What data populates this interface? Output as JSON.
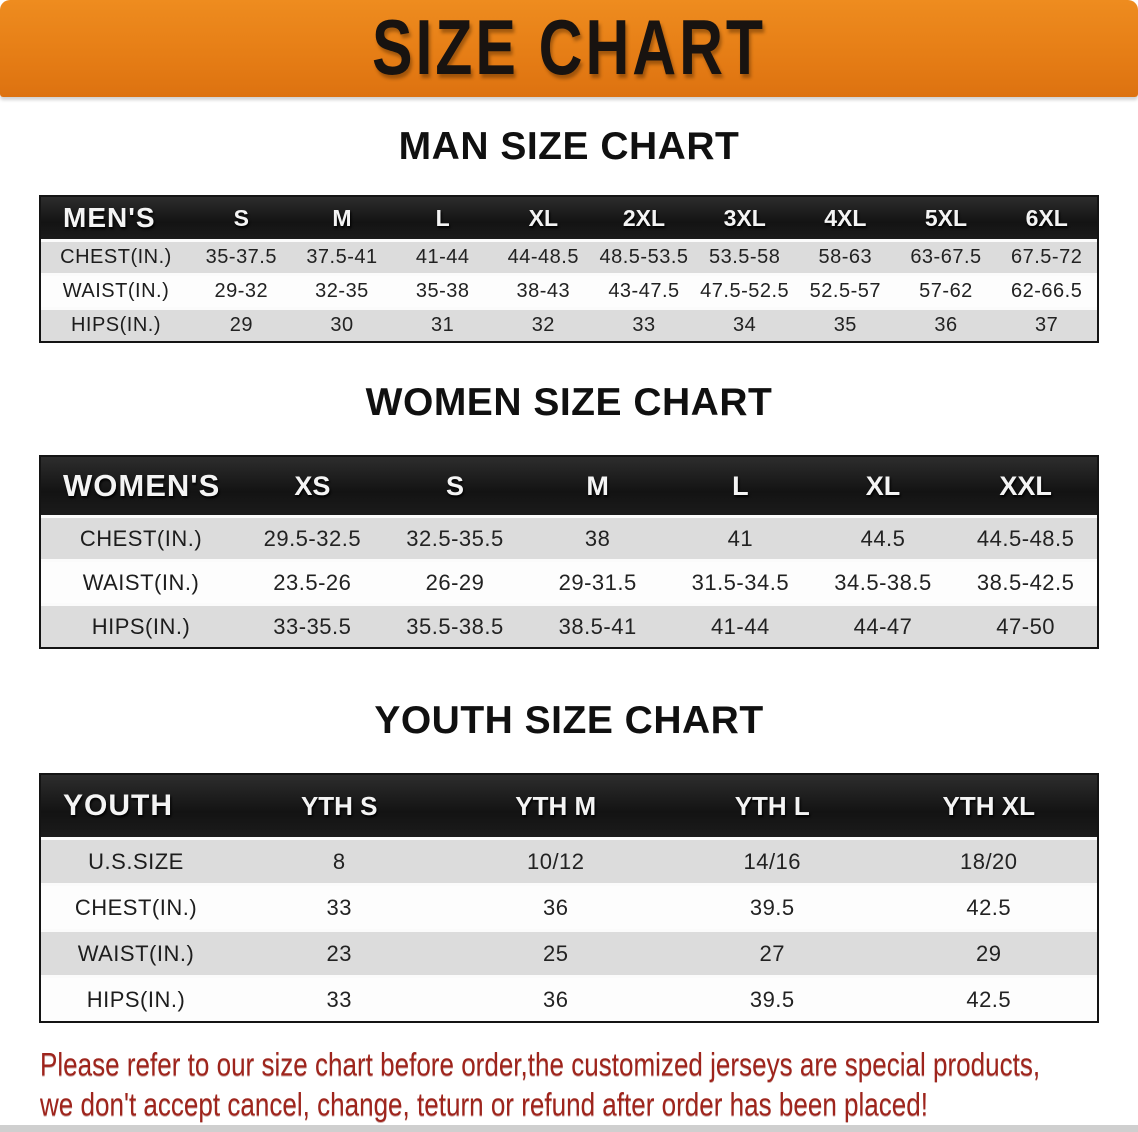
{
  "banner": {
    "title": "SIZE CHART"
  },
  "colors": {
    "banner_orange": "#E67E16",
    "table_header_black": "#161616",
    "row_gray": "#DCDCDC",
    "row_white": "#FDFDFD",
    "disclaimer_red": "#9E241C"
  },
  "sections": [
    {
      "heading": "MAN SIZE CHART",
      "table": {
        "header_label": "MEN'S",
        "columns": [
          "S",
          "M",
          "L",
          "XL",
          "2XL",
          "3XL",
          "4XL",
          "5XL",
          "6XL"
        ],
        "rows": [
          {
            "label": "CHEST(IN.)",
            "values": [
              "35-37.5",
              "37.5-41",
              "41-44",
              "44-48.5",
              "48.5-53.5",
              "53.5-58",
              "58-63",
              "63-67.5",
              "67.5-72"
            ]
          },
          {
            "label": "WAIST(IN.)",
            "values": [
              "29-32",
              "32-35",
              "35-38",
              "38-43",
              "43-47.5",
              "47.5-52.5",
              "52.5-57",
              "57-62",
              "62-66.5"
            ]
          },
          {
            "label": "HIPS(IN.)",
            "values": [
              "29",
              "30",
              "31",
              "32",
              "33",
              "34",
              "35",
              "36",
              "37"
            ]
          }
        ]
      }
    },
    {
      "heading": "WOMEN SIZE CHART",
      "table": {
        "header_label": "WOMEN'S",
        "columns": [
          "XS",
          "S",
          "M",
          "L",
          "XL",
          "XXL"
        ],
        "rows": [
          {
            "label": "CHEST(IN.)",
            "values": [
              "29.5-32.5",
              "32.5-35.5",
              "38",
              "41",
              "44.5",
              "44.5-48.5"
            ]
          },
          {
            "label": "WAIST(IN.)",
            "values": [
              "23.5-26",
              "26-29",
              "29-31.5",
              "31.5-34.5",
              "34.5-38.5",
              "38.5-42.5"
            ]
          },
          {
            "label": "HIPS(IN.)",
            "values": [
              "33-35.5",
              "35.5-38.5",
              "38.5-41",
              "41-44",
              "44-47",
              "47-50"
            ]
          }
        ]
      }
    },
    {
      "heading": "YOUTH SIZE CHART",
      "table": {
        "header_label": "YOUTH",
        "columns": [
          "YTH S",
          "YTH M",
          "YTH L",
          "YTH XL"
        ],
        "rows": [
          {
            "label": "U.S.SIZE",
            "values": [
              "8",
              "10/12",
              "14/16",
              "18/20"
            ]
          },
          {
            "label": "CHEST(IN.)",
            "values": [
              "33",
              "36",
              "39.5",
              "42.5"
            ]
          },
          {
            "label": "WAIST(IN.)",
            "values": [
              "23",
              "25",
              "27",
              "29"
            ]
          },
          {
            "label": "HIPS(IN.)",
            "values": [
              "33",
              "36",
              "39.5",
              "42.5"
            ]
          }
        ]
      }
    }
  ],
  "disclaimer": {
    "line1": "Please refer to our size chart before order,the customized jerseys are special products,",
    "line2": "we don't accept cancel, change, teturn or refund after order has been placed!"
  }
}
